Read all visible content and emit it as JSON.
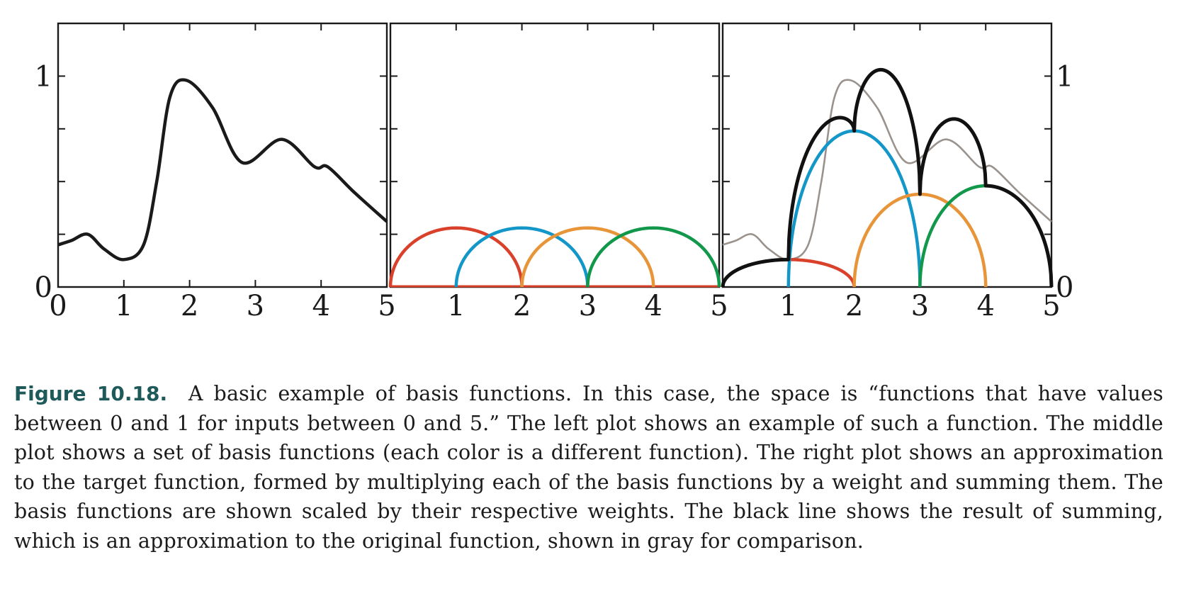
{
  "caption": {
    "label": "Figure 10.18.",
    "text": "A basic example of basis functions. In this case, the space is “functions that have values between 0 and 1 for inputs between 0 and 5.” The left plot shows an example of such a function. The middle plot shows a set of basis functions (each color is a different function). The right plot shows an approximation to the target function, formed by multiplying each of the basis functions by a weight and summing them. The basis functions are shown scaled by their respective weights. The black line shows the result of summing, which is an approximation to the original function, shown in gray for comparison."
  },
  "colors": {
    "target": "#1a1a1a",
    "target_gray": "#9a928d",
    "sum": "#111111",
    "basis": [
      "#d9412b",
      "#1396c8",
      "#e8953a",
      "#12984a"
    ],
    "frame": "#1a1a1a"
  },
  "chart_data": [
    {
      "type": "line",
      "panel": "left",
      "xlim": [
        0,
        5
      ],
      "ylim": [
        0,
        1.25
      ],
      "x_ticks": [
        0,
        1,
        2,
        3,
        4,
        5
      ],
      "x_tick_labels": [
        "0",
        "1",
        "2",
        "3",
        "4",
        "5"
      ],
      "y_tick_labels": [
        {
          "value": 0,
          "label": "0"
        },
        {
          "value": 1,
          "label": "1"
        }
      ],
      "y_ticks_minor": [
        0.25,
        0.5,
        0.75
      ],
      "series": [
        {
          "role": "target",
          "x": [
            0,
            0.2,
            0.45,
            0.7,
            1.0,
            1.3,
            1.5,
            1.7,
            1.95,
            2.35,
            2.8,
            3.4,
            3.9,
            4.1,
            4.5,
            5.0
          ],
          "y": [
            0.2,
            0.22,
            0.25,
            0.18,
            0.13,
            0.2,
            0.5,
            0.9,
            0.98,
            0.85,
            0.59,
            0.7,
            0.57,
            0.57,
            0.45,
            0.31
          ]
        }
      ]
    },
    {
      "type": "line",
      "panel": "middle",
      "xlim": [
        0,
        5
      ],
      "ylim": [
        0,
        1.25
      ],
      "x_ticks": [
        1,
        2,
        3,
        4,
        5
      ],
      "x_tick_labels": [
        "1",
        "2",
        "3",
        "4",
        "5"
      ],
      "y_ticks_minor": [
        0.25,
        0.5,
        0.75,
        1.0
      ],
      "series": [
        {
          "role": "basis",
          "center": 1,
          "weight": 1,
          "x": [
            0,
            2
          ],
          "peak": 0.28
        },
        {
          "role": "basis",
          "center": 2,
          "weight": 1,
          "x": [
            1,
            3
          ],
          "peak": 0.28
        },
        {
          "role": "basis",
          "center": 3,
          "weight": 1,
          "x": [
            2,
            4
          ],
          "peak": 0.28
        },
        {
          "role": "basis",
          "center": 4,
          "weight": 1,
          "x": [
            3,
            5
          ],
          "peak": 0.28
        }
      ]
    },
    {
      "type": "line",
      "panel": "right",
      "xlim": [
        0,
        5
      ],
      "ylim": [
        0,
        1.25
      ],
      "x_ticks": [
        1,
        2,
        3,
        4,
        5
      ],
      "x_tick_labels": [
        "1",
        "2",
        "3",
        "4",
        "5"
      ],
      "y_tick_labels": [
        {
          "value": 0,
          "label": "0"
        },
        {
          "value": 1,
          "label": "1"
        }
      ],
      "y_ticks_minor": [
        0.25,
        0.5,
        0.75
      ],
      "series": [
        {
          "role": "target_gray"
        },
        {
          "role": "scaled_basis",
          "support": [
            0,
            2
          ],
          "peak": 0.13
        },
        {
          "role": "scaled_basis",
          "support": [
            1,
            3
          ],
          "peak": 0.74
        },
        {
          "role": "scaled_basis",
          "support": [
            2,
            4
          ],
          "peak": 0.44
        },
        {
          "role": "scaled_basis",
          "support": [
            3,
            5
          ],
          "peak": 0.48
        },
        {
          "role": "sum"
        }
      ]
    }
  ]
}
